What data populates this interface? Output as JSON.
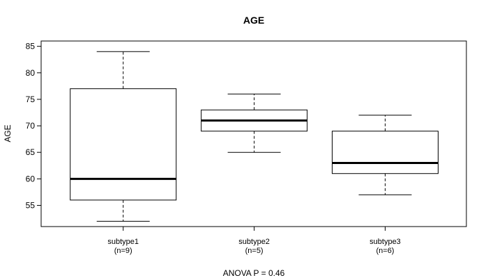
{
  "chart_data": {
    "type": "box",
    "title": "AGE",
    "ylabel": "AGE",
    "xlabel": "",
    "ylim": [
      51,
      86
    ],
    "yticks": [
      55,
      60,
      65,
      70,
      75,
      80,
      85
    ],
    "grid": false,
    "categories": [
      {
        "name": "subtype1",
        "n_label": "(n=9)",
        "min": 52,
        "q1": 56,
        "median": 60,
        "q3": 77,
        "max": 84
      },
      {
        "name": "subtype2",
        "n_label": "(n=5)",
        "min": 65,
        "q1": 69,
        "median": 71,
        "q3": 73,
        "max": 76
      },
      {
        "name": "subtype3",
        "n_label": "(n=6)",
        "min": 57,
        "q1": 61,
        "median": 63,
        "q3": 69,
        "max": 72
      }
    ],
    "footer": "ANOVA P = 0.46"
  }
}
